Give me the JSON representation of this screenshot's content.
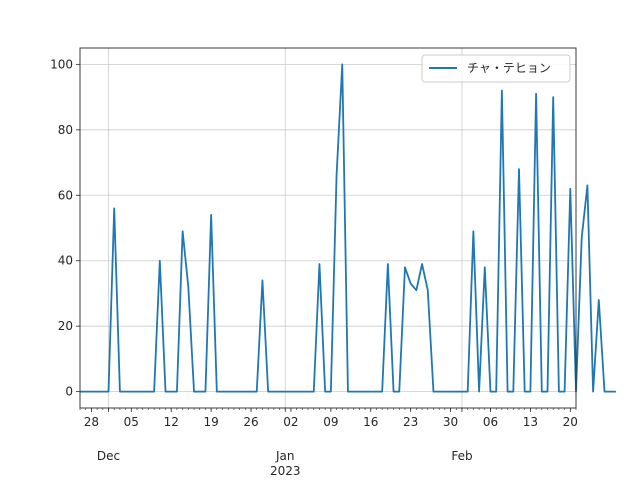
{
  "chart_data": {
    "type": "line",
    "title": "",
    "xlabel": "",
    "ylabel": "",
    "x_start": "2022-11-26",
    "xlim": [
      "2022-11-26",
      "2023-02-21"
    ],
    "ylim": [
      -5,
      105
    ],
    "grid": true,
    "legend_position": "top-right",
    "line_color": "#1f77b4",
    "y_ticks": [
      0,
      20,
      40,
      60,
      80,
      100
    ],
    "x_ticks": [
      {
        "date": "2022-11-28",
        "label": "28"
      },
      {
        "date": "2022-12-05",
        "label": "05"
      },
      {
        "date": "2022-12-12",
        "label": "12"
      },
      {
        "date": "2022-12-19",
        "label": "19"
      },
      {
        "date": "2022-12-26",
        "label": "26"
      },
      {
        "date": "2023-01-02",
        "label": "02"
      },
      {
        "date": "2023-01-09",
        "label": "09"
      },
      {
        "date": "2023-01-16",
        "label": "16"
      },
      {
        "date": "2023-01-23",
        "label": "23"
      },
      {
        "date": "2023-01-30",
        "label": "30"
      },
      {
        "date": "2023-02-06",
        "label": "06"
      },
      {
        "date": "2023-02-13",
        "label": "13"
      },
      {
        "date": "2023-02-20",
        "label": "20"
      }
    ],
    "month_labels": [
      {
        "date": "2022-12-01",
        "label": "Dec"
      },
      {
        "date": "2023-01-01",
        "label": "Jan"
      },
      {
        "date": "2023-02-01",
        "label": "Feb"
      }
    ],
    "year_labels": [
      {
        "date": "2023-01-01",
        "label": "2023"
      }
    ],
    "series": [
      {
        "name": "チャ・テヒョン",
        "values": [
          0,
          0,
          0,
          0,
          0,
          0,
          56,
          0,
          0,
          0,
          0,
          0,
          0,
          0,
          40,
          0,
          0,
          0,
          49,
          32,
          0,
          0,
          0,
          54,
          0,
          0,
          0,
          0,
          0,
          0,
          0,
          0,
          34,
          0,
          0,
          0,
          0,
          0,
          0,
          0,
          0,
          0,
          39,
          0,
          0,
          66,
          100,
          0,
          0,
          0,
          0,
          0,
          0,
          0,
          39,
          0,
          0,
          38,
          33,
          31,
          39,
          31,
          0,
          0,
          0,
          0,
          0,
          0,
          0,
          49,
          0,
          38,
          0,
          0,
          92,
          0,
          0,
          68,
          0,
          0,
          91,
          0,
          0,
          90,
          0,
          0,
          62,
          0,
          47,
          63,
          0,
          28,
          0,
          0,
          0
        ]
      }
    ]
  }
}
